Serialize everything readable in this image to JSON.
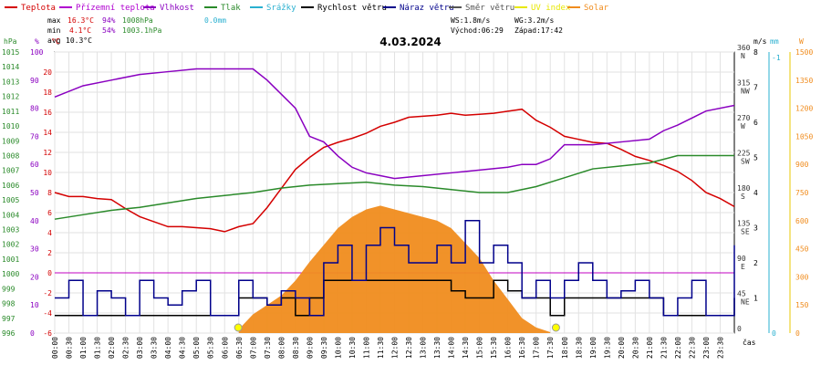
{
  "legend": [
    {
      "label": "Teplota",
      "color": "#d40000"
    },
    {
      "label": "Přízemní teplota",
      "color": "#b000d0"
    },
    {
      "label": "Vlhkost",
      "color": "#8a00c0"
    },
    {
      "label": "Tlak",
      "color": "#2a8a2a"
    },
    {
      "label": "Srážky",
      "color": "#2ab0d0"
    },
    {
      "label": "Rychlost větru",
      "color": "#000000"
    },
    {
      "label": "Náraz větru",
      "color": "#00008b"
    },
    {
      "label": "Směr větru",
      "color": "#555555"
    },
    {
      "label": "UV index",
      "color": "#e8e800"
    },
    {
      "label": "Solar",
      "color": "#f08c1e"
    }
  ],
  "stats": {
    "max_label": "max",
    "max_temp": "16.3°C",
    "max_hum": "94%",
    "max_press": "1008hPa",
    "max_rain": "0.0mm",
    "min_label": "min",
    "min_temp": "4.1°C",
    "min_hum": "54%",
    "min_press": "1003.1hPa",
    "avg_label": "avg",
    "avg_temp": "10.3°C"
  },
  "wind_info": {
    "ws": "WS:1.8m/s",
    "wg": "WG:3.2m/s",
    "sunrise": "Východ:06:29",
    "sunset": "Západ:17:42"
  },
  "axis_titles": {
    "press": "hPa",
    "hum": "%",
    "temp": "°C",
    "windms": "m/s",
    "rain": "mm",
    "solar": "W",
    "time": "čas"
  },
  "chart_data": {
    "type": "line",
    "title": "4.03.2024",
    "x_ticks": [
      "00:00",
      "00:30",
      "01:00",
      "01:30",
      "02:00",
      "02:30",
      "03:00",
      "03:30",
      "04:00",
      "04:30",
      "05:00",
      "05:30",
      "06:00",
      "06:30",
      "07:00",
      "07:30",
      "08:00",
      "08:30",
      "09:00",
      "09:30",
      "10:00",
      "10:30",
      "11:00",
      "11:30",
      "12:00",
      "12:30",
      "13:00",
      "13:30",
      "14:00",
      "14:30",
      "15:00",
      "15:30",
      "16:00",
      "16:30",
      "17:00",
      "17:30",
      "18:00",
      "18:30",
      "19:00",
      "19:30",
      "20:00",
      "20:30",
      "21:00",
      "21:30",
      "22:00",
      "22:30",
      "23:00",
      "23:30"
    ],
    "axes": {
      "press": {
        "min": 996,
        "max": 1015,
        "ticks": [
          "1015",
          "1014",
          "1013",
          "1012",
          "1011",
          "1010",
          "1009",
          "1008",
          "1007",
          "1006",
          "1005",
          "1004",
          "1003",
          "1002",
          "1001",
          "1000",
          "999",
          "998",
          "997",
          "996"
        ]
      },
      "hum": {
        "min": 0,
        "max": 100,
        "ticks": [
          "100",
          "90",
          "80",
          "70",
          "60",
          "50",
          "40",
          "30",
          "20",
          "10",
          "0"
        ]
      },
      "temp": {
        "min": -6,
        "max": 22,
        "ticks": [
          "20",
          "18",
          "16",
          "14",
          "12",
          "10",
          "8",
          "6",
          "4",
          "2",
          "0",
          "-2",
          "-4",
          "-6"
        ]
      },
      "dir_ticks": [
        {
          "deg": 360,
          "label": "360",
          "c": "N"
        },
        {
          "deg": 315,
          "label": "315",
          "c": "NW"
        },
        {
          "deg": 270,
          "label": "270",
          "c": "W"
        },
        {
          "deg": 225,
          "label": "225",
          "c": "SW"
        },
        {
          "deg": 180,
          "label": "180",
          "c": "S"
        },
        {
          "deg": 135,
          "label": "135",
          "c": "SE"
        },
        {
          "deg": 90,
          "label": "90",
          "c": "E"
        },
        {
          "deg": 45,
          "label": "45",
          "c": "NE"
        },
        {
          "deg": 0,
          "label": "0",
          "c": ""
        }
      ],
      "windms": {
        "min": 0,
        "max": 8,
        "ticks": [
          "8",
          "7",
          "6",
          "5",
          "4",
          "3",
          "2",
          "1",
          "0"
        ]
      },
      "rain": {
        "ticks": [
          "0",
          "-1"
        ]
      },
      "solar": {
        "min": 0,
        "max": 1500,
        "ticks": [
          "1500",
          "1350",
          "1200",
          "1050",
          "900",
          "750",
          "600",
          "450",
          "300",
          "150",
          "0"
        ]
      }
    },
    "series": [
      {
        "name": "Teplota",
        "unit": "°C",
        "x": [
          0,
          0.5,
          1,
          1.5,
          2,
          2.5,
          3,
          3.5,
          4,
          4.5,
          5,
          5.5,
          6,
          6.5,
          7,
          7.5,
          8,
          8.5,
          9,
          9.5,
          10,
          10.5,
          11,
          11.5,
          12,
          12.5,
          13,
          13.5,
          14,
          14.5,
          15,
          15.5,
          16,
          16.5,
          17,
          17.5,
          18,
          18.5,
          19,
          19.5,
          20,
          20.5,
          21,
          21.5,
          22,
          22.5,
          23,
          23.5,
          24
        ],
        "values": [
          8,
          7.6,
          7.6,
          7.4,
          7.3,
          6.4,
          5.6,
          5.1,
          4.6,
          4.6,
          4.5,
          4.4,
          4.1,
          4.6,
          4.9,
          6.5,
          8.4,
          10.3,
          11.5,
          12.5,
          13.0,
          13.4,
          13.9,
          14.6,
          15.0,
          15.5,
          15.6,
          15.7,
          15.9,
          15.7,
          15.8,
          15.9,
          16.1,
          16.3,
          15.2,
          14.5,
          13.6,
          13.3,
          13.0,
          12.9,
          12.3,
          11.6,
          11.2,
          10.7,
          10.1,
          9.2,
          8.0,
          7.4,
          6.6
        ]
      },
      {
        "name": "Vlhkost",
        "unit": "%",
        "x": [
          0,
          1,
          2,
          3,
          4,
          5,
          6,
          7,
          7.5,
          8,
          8.5,
          9,
          9.5,
          10,
          10.5,
          11,
          11.5,
          12,
          13,
          14,
          15,
          16,
          16.5,
          17,
          17.5,
          18,
          19,
          20,
          21,
          21.5,
          22,
          23,
          24
        ],
        "values": [
          84,
          88,
          90,
          92,
          93,
          94,
          94,
          94,
          90,
          85,
          80,
          70,
          68,
          63,
          59,
          57,
          56,
          55,
          56,
          57,
          58,
          59,
          60,
          60,
          62,
          67,
          67,
          68,
          69,
          72,
          74,
          79,
          81
        ]
      },
      {
        "name": "Tlak",
        "unit": "hPa",
        "x": [
          0,
          1,
          2,
          3,
          4,
          5,
          6,
          7,
          8,
          9,
          10,
          11,
          12,
          13,
          14,
          15,
          15.5,
          16,
          17,
          18,
          19,
          20,
          21,
          22,
          23,
          24
        ],
        "values": [
          1003.7,
          1004.0,
          1004.3,
          1004.5,
          1004.8,
          1005.1,
          1005.3,
          1005.5,
          1005.8,
          1006.0,
          1006.1,
          1006.2,
          1006.0,
          1005.9,
          1005.7,
          1005.5,
          1005.5,
          1005.5,
          1005.9,
          1006.5,
          1007.1,
          1007.3,
          1007.5,
          1008.0,
          1008.0,
          1008.0
        ]
      },
      {
        "name": "Rychlost větru",
        "unit": "m/s",
        "x": [
          0,
          1,
          2,
          3,
          4,
          5,
          6,
          6.5,
          7,
          7.5,
          8,
          8.5,
          9,
          9.5,
          10,
          10.5,
          11,
          11.5,
          12,
          12.5,
          13,
          13.5,
          14,
          14.5,
          15,
          15.5,
          16,
          16.5,
          17,
          17.5,
          18,
          18.5,
          19,
          19.5,
          20,
          20.5,
          21,
          21.5,
          22,
          22.5,
          23,
          23.5,
          24
        ],
        "values": [
          0.5,
          0.5,
          0.5,
          0.5,
          0.5,
          0.5,
          0.5,
          1.0,
          1.0,
          0.8,
          1.0,
          0.5,
          1.0,
          1.5,
          1.5,
          1.5,
          1.5,
          1.5,
          1.5,
          1.5,
          1.5,
          1.5,
          1.2,
          1.0,
          1.0,
          1.5,
          1.2,
          1.0,
          1.0,
          0.5,
          1.0,
          1.0,
          1.0,
          1.0,
          1.0,
          1.0,
          1.0,
          0.5,
          0.5,
          0.5,
          0.5,
          0.5,
          1.0
        ]
      },
      {
        "name": "Náraz větru",
        "unit": "m/s",
        "x": [
          0,
          0.5,
          1,
          1.5,
          2,
          2.5,
          3,
          3.5,
          4,
          4.5,
          5,
          5.5,
          6,
          6.5,
          7,
          7.5,
          8,
          8.5,
          9,
          9.5,
          10,
          10.5,
          11,
          11.5,
          12,
          12.5,
          13,
          13.5,
          14,
          14.5,
          15,
          15.5,
          16,
          16.5,
          17,
          17.5,
          18,
          18.5,
          19,
          19.5,
          20,
          20.5,
          21,
          21.5,
          22,
          22.5,
          23,
          23.5,
          24
        ],
        "values": [
          1.0,
          1.5,
          0.5,
          1.2,
          1.0,
          0.5,
          1.5,
          1.0,
          0.8,
          1.2,
          1.5,
          0.5,
          0.5,
          1.5,
          1.0,
          0.8,
          1.2,
          1.0,
          0.5,
          2.0,
          2.5,
          1.5,
          2.5,
          3.0,
          2.5,
          2.0,
          2.0,
          2.5,
          2.0,
          3.2,
          2.0,
          2.5,
          2.0,
          1.0,
          1.5,
          1.0,
          1.5,
          2.0,
          1.5,
          1.0,
          1.2,
          1.5,
          1.0,
          0.5,
          1.0,
          1.5,
          0.5,
          0.5,
          2.5
        ]
      },
      {
        "name": "Solar",
        "unit": "W",
        "x": [
          6.5,
          7,
          7.5,
          8,
          8.5,
          9,
          9.5,
          10,
          10.5,
          11,
          11.5,
          12,
          12.5,
          13,
          13.5,
          14,
          14.5,
          15,
          15.5,
          16,
          16.5,
          17,
          17.5
        ],
        "values": [
          20,
          100,
          150,
          200,
          280,
          380,
          470,
          560,
          620,
          660,
          680,
          660,
          640,
          620,
          600,
          560,
          480,
          400,
          280,
          180,
          80,
          30,
          5
        ]
      }
    ]
  }
}
